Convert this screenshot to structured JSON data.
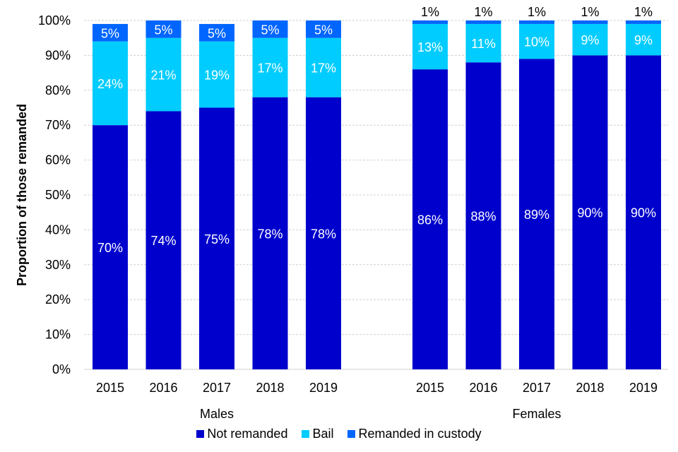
{
  "chart_data": {
    "type": "bar",
    "stacked": true,
    "title": "",
    "xlabel": "",
    "ylabel": "Proportion of those remanded",
    "ylim": [
      0,
      100
    ],
    "yticks": [
      "0%",
      "10%",
      "20%",
      "30%",
      "40%",
      "50%",
      "60%",
      "70%",
      "80%",
      "90%",
      "100%"
    ],
    "grid": true,
    "legend_position": "bottom",
    "groups": [
      {
        "name": "Males",
        "categories": [
          "2015",
          "2016",
          "2017",
          "2018",
          "2019"
        ]
      },
      {
        "name": "Females",
        "categories": [
          "2015",
          "2016",
          "2017",
          "2018",
          "2019"
        ]
      }
    ],
    "series": [
      {
        "name": "Not remanded",
        "color": "#0000CC",
        "values": [
          [
            70,
            74,
            75,
            78,
            78
          ],
          [
            86,
            88,
            89,
            90,
            90
          ]
        ],
        "labels": [
          [
            "70%",
            "74%",
            "75%",
            "78%",
            "78%"
          ],
          [
            "86%",
            "88%",
            "89%",
            "90%",
            "90%"
          ]
        ]
      },
      {
        "name": "Bail",
        "color": "#00CCFF",
        "values": [
          [
            24,
            21,
            19,
            17,
            17
          ],
          [
            13,
            11,
            10,
            9,
            9
          ]
        ],
        "labels": [
          [
            "24%",
            "21%",
            "19%",
            "17%",
            "17%"
          ],
          [
            "13%",
            "11%",
            "10%",
            "9%",
            "9%"
          ]
        ]
      },
      {
        "name": "Remanded in custody",
        "color": "#0066FF",
        "values": [
          [
            5,
            5,
            5,
            5,
            5
          ],
          [
            1,
            1,
            1,
            1,
            1
          ]
        ],
        "labels": [
          [
            "5%",
            "5%",
            "5%",
            "5%",
            "5%"
          ],
          [
            "1%",
            "1%",
            "1%",
            "1%",
            "1%"
          ]
        ]
      }
    ]
  }
}
